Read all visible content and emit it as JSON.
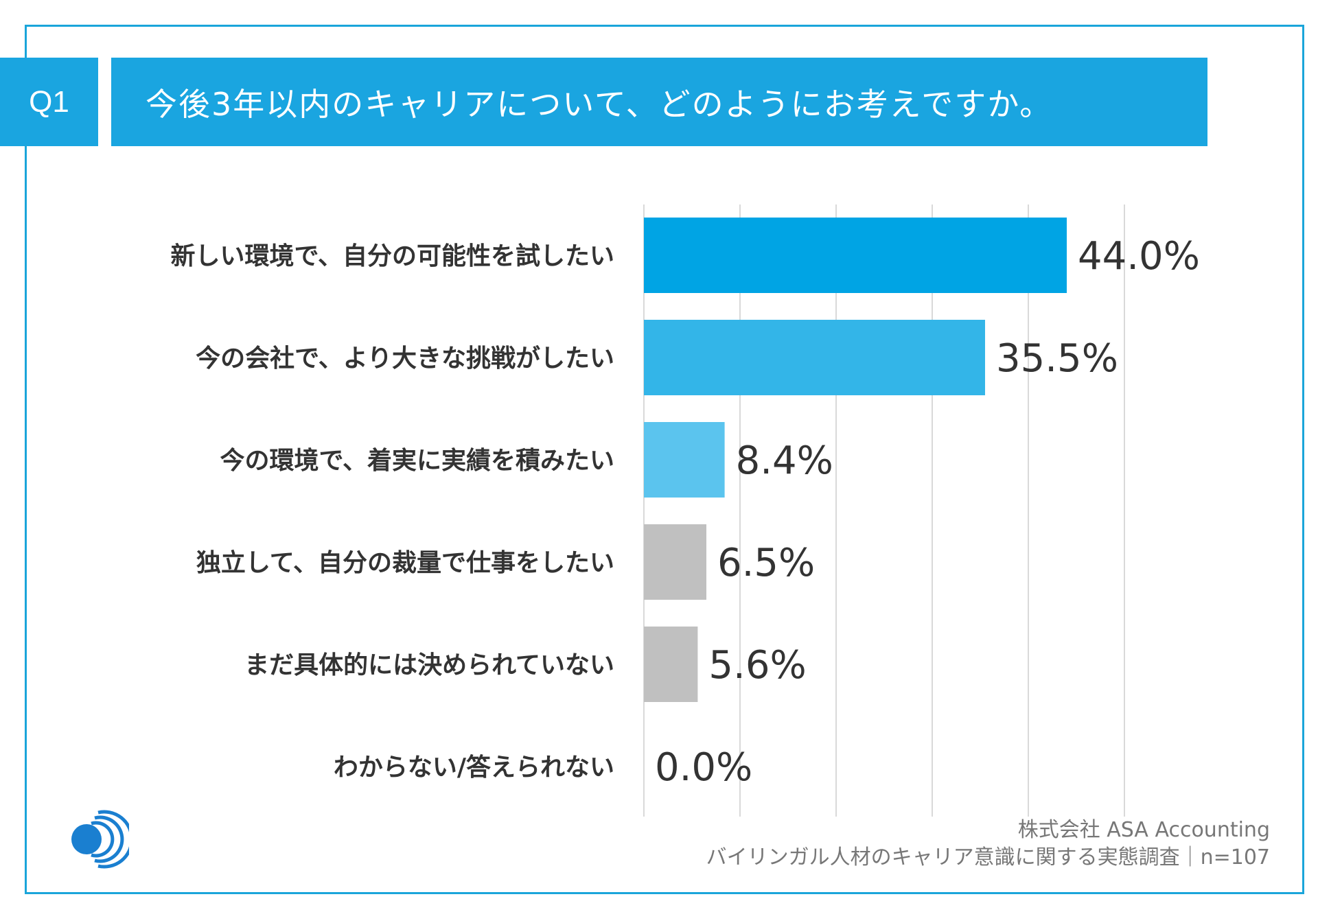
{
  "header": {
    "q_label": "Q1",
    "title": "今後3年以内のキャリアについて、どのようにお考えですか。"
  },
  "chart_data": {
    "type": "bar",
    "orientation": "horizontal",
    "title": "今後3年以内のキャリアについて、どのようにお考えですか。",
    "categories": [
      "新しい環境で、自分の可能性を試したい",
      "今の会社で、より大きな挑戦がしたい",
      "今の環境で、着実に実績を積みたい",
      "独立して、自分の裁量で仕事をしたい",
      "まだ具体的には決められていない",
      "わからない/答えられない"
    ],
    "values": [
      44.0,
      35.5,
      8.4,
      6.5,
      5.6,
      0.0
    ],
    "value_labels": [
      "44.0%",
      "35.5%",
      "8.4%",
      "6.5%",
      "5.6%",
      "0.0%"
    ],
    "bar_colors": [
      "#00a4e4",
      "#33b5e8",
      "#5bc4ee",
      "#c0c0c0",
      "#c0c0c0",
      "#c0c0c0"
    ],
    "xlim": [
      0,
      50
    ],
    "x_gridlines": [
      0,
      10,
      20,
      30,
      40,
      50
    ],
    "unit": "%"
  },
  "footer": {
    "company": "株式会社 ASA Accounting",
    "survey": "バイリンガル人材のキャリア意識に関する実態調査｜n=107"
  },
  "colors": {
    "accent": "#1aa5e0",
    "frame": "#1aa5da",
    "grid": "#d9d9d9",
    "text": "#333333"
  }
}
